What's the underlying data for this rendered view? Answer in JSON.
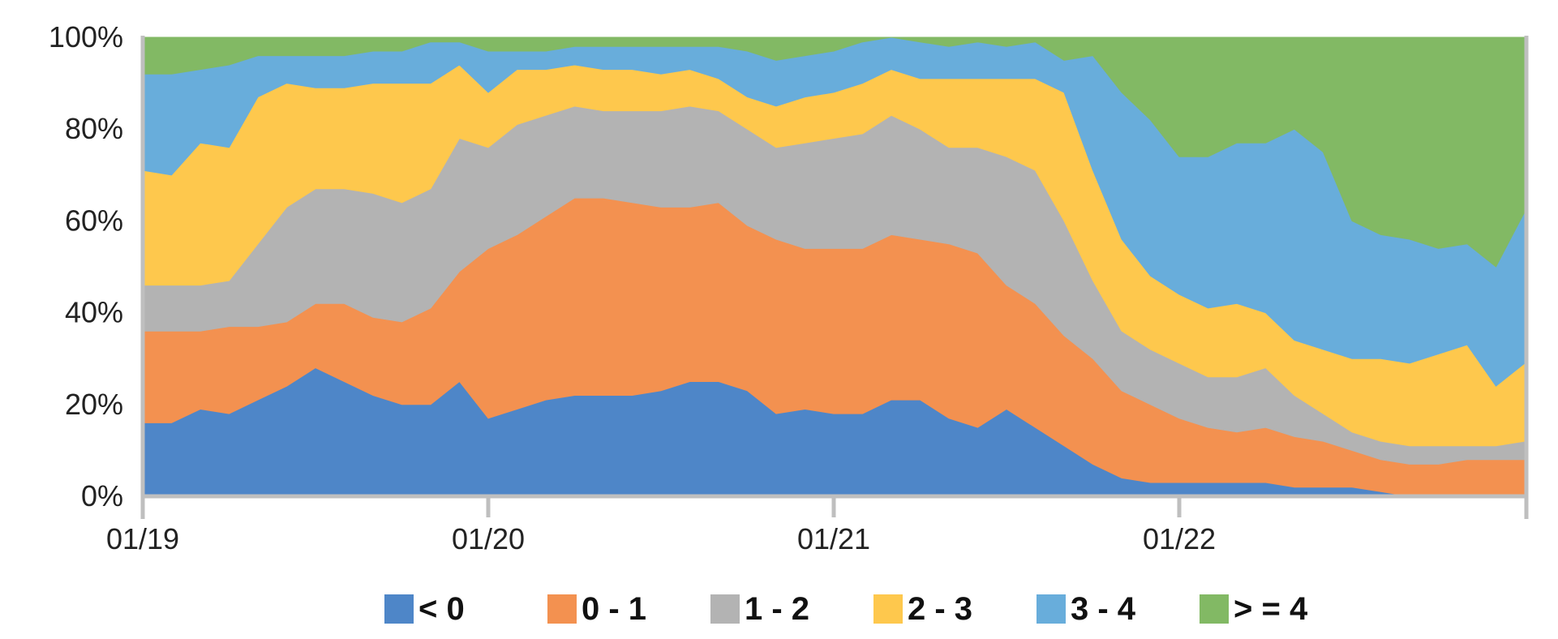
{
  "chart_data": {
    "type": "area",
    "stacked": true,
    "percent": true,
    "xlabel": "",
    "ylabel": "",
    "ylim": [
      0,
      100
    ],
    "y_ticks": [
      "0%",
      "20%",
      "40%",
      "60%",
      "80%",
      "100%"
    ],
    "x_ticks": [
      "01/19",
      "01/20",
      "01/21",
      "01/22"
    ],
    "x_range": [
      0,
      48
    ],
    "grid": false,
    "legend": "bottom",
    "x": [
      0,
      1,
      2,
      3,
      4,
      5,
      6,
      7,
      8,
      9,
      10,
      11,
      12,
      13,
      14,
      15,
      16,
      17,
      18,
      19,
      20,
      21,
      22,
      23,
      24,
      25,
      26,
      27,
      28,
      29,
      30,
      31,
      32,
      33,
      34,
      35,
      36,
      37,
      38,
      39,
      40,
      41,
      42,
      43,
      44,
      45,
      46,
      47,
      48
    ],
    "series": [
      {
        "name": "< 0",
        "color": "#4E86C8",
        "values": [
          16,
          16,
          19,
          18,
          21,
          24,
          28,
          25,
          22,
          20,
          20,
          25,
          17,
          19,
          21,
          22,
          22,
          22,
          23,
          25,
          25,
          23,
          18,
          19,
          18,
          18,
          21,
          21,
          17,
          15,
          19,
          15,
          11,
          7,
          4,
          3,
          3,
          3,
          3,
          3,
          2,
          2,
          2,
          1,
          0,
          0,
          0,
          0,
          0
        ]
      },
      {
        "name": "0 - 1",
        "color": "#F39150",
        "values": [
          20,
          20,
          17,
          19,
          16,
          14,
          14,
          17,
          17,
          18,
          21,
          24,
          37,
          38,
          40,
          43,
          43,
          42,
          40,
          38,
          39,
          36,
          38,
          35,
          36,
          36,
          36,
          35,
          38,
          38,
          27,
          27,
          24,
          23,
          19,
          17,
          14,
          12,
          11,
          12,
          11,
          10,
          8,
          7,
          7,
          7,
          8,
          8,
          8
        ]
      },
      {
        "name": "1 - 2",
        "color": "#B3B3B3",
        "values": [
          10,
          10,
          10,
          10,
          18,
          25,
          25,
          25,
          27,
          26,
          26,
          29,
          22,
          24,
          22,
          20,
          19,
          20,
          21,
          22,
          20,
          21,
          20,
          23,
          24,
          25,
          26,
          24,
          21,
          23,
          28,
          29,
          25,
          17,
          13,
          12,
          12,
          11,
          12,
          13,
          9,
          6,
          4,
          4,
          4,
          4,
          3,
          3,
          4
        ]
      },
      {
        "name": "2 - 3",
        "color": "#FEC84D",
        "values": [
          25,
          24,
          31,
          29,
          32,
          27,
          22,
          22,
          24,
          26,
          23,
          16,
          12,
          12,
          10,
          9,
          9,
          9,
          8,
          8,
          7,
          7,
          9,
          10,
          10,
          11,
          10,
          11,
          15,
          15,
          17,
          20,
          28,
          24,
          20,
          16,
          15,
          15,
          16,
          12,
          12,
          14,
          16,
          18,
          18,
          20,
          22,
          13,
          17
        ]
      },
      {
        "name": "3 - 4",
        "color": "#68ADDB",
        "values": [
          21,
          22,
          16,
          18,
          9,
          6,
          7,
          7,
          7,
          7,
          9,
          5,
          9,
          4,
          4,
          4,
          5,
          5,
          6,
          5,
          7,
          10,
          10,
          9,
          9,
          9,
          9,
          8,
          7,
          8,
          7,
          8,
          7,
          25,
          32,
          34,
          30,
          33,
          35,
          37,
          46,
          43,
          30,
          27,
          27,
          23,
          22,
          26,
          33
        ]
      },
      {
        "name": "> = 4",
        "color": "#82B964",
        "values": [
          8,
          8,
          7,
          6,
          4,
          4,
          4,
          4,
          3,
          3,
          1,
          1,
          3,
          3,
          3,
          2,
          2,
          2,
          2,
          2,
          2,
          3,
          5,
          4,
          3,
          1,
          2,
          1,
          2,
          1,
          2,
          1,
          5,
          4,
          12,
          18,
          26,
          26,
          23,
          23,
          20,
          25,
          40,
          43,
          44,
          46,
          45,
          50,
          38
        ]
      }
    ]
  }
}
